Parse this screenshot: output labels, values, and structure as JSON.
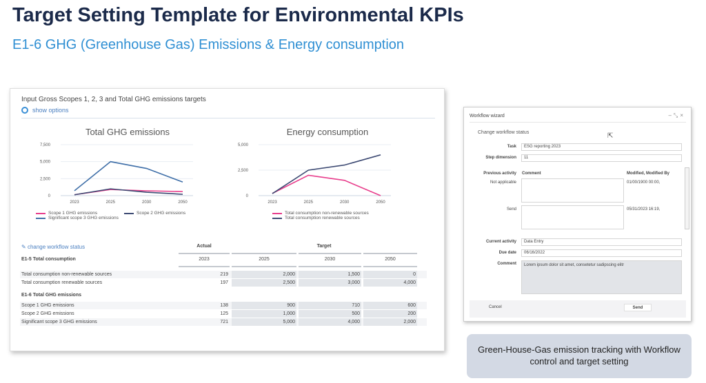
{
  "title": "Target Setting Template for Environmental KPIs",
  "subtitle": "E1-6 GHG (Greenhouse Gas) Emissions & Energy consumption",
  "panel": {
    "title": "Input Gross Scopes 1, 2, 3 and Total GHG emissions targets",
    "show_options": "show options",
    "change_status": "change workflow status"
  },
  "chart_data": [
    {
      "type": "line",
      "title": "Total GHG emissions",
      "categories": [
        "2023",
        "2025",
        "2030",
        "2050"
      ],
      "ylim": [
        0,
        7500
      ],
      "yticks": [
        "0",
        "2,500",
        "5,000",
        "7,500"
      ],
      "ytick_values": [
        0,
        2500,
        5000,
        7500
      ],
      "series": [
        {
          "name": "Scope 1 GHG emissions",
          "color": "#e83e8c",
          "values": [
            138,
            900,
            710,
            600
          ]
        },
        {
          "name": "Scope 2 GHG emissions",
          "color": "#3d4a73",
          "values": [
            125,
            1000,
            500,
            200
          ]
        },
        {
          "name": "Significant scope 3 GHG emissions",
          "color": "#3f6fa8",
          "values": [
            721,
            5000,
            4000,
            2000
          ]
        }
      ]
    },
    {
      "type": "line",
      "title": "Energy consumption",
      "categories": [
        "2023",
        "2025",
        "2030",
        "2050"
      ],
      "ylim": [
        0,
        5000
      ],
      "yticks": [
        "0",
        "2,500",
        "5,000"
      ],
      "ytick_values": [
        0,
        2500,
        5000
      ],
      "series": [
        {
          "name": "Total consumption non-renewable sources",
          "color": "#e83e8c",
          "values": [
            219,
            2000,
            1500,
            0
          ]
        },
        {
          "name": "Total consumption renewable sources",
          "color": "#3d4a73",
          "values": [
            197,
            2500,
            3000,
            4000
          ]
        }
      ]
    }
  ],
  "table": {
    "actual": "Actual",
    "target": "Target",
    "years": [
      "2023",
      "2025",
      "2030",
      "2050"
    ],
    "sections": [
      {
        "title": "E1-5 Total consumption",
        "rows": [
          {
            "label": "Total consumption non-renewable sources",
            "values": [
              "219",
              "2,000",
              "1,500",
              "0"
            ]
          },
          {
            "label": "Total consumption renewable sources",
            "values": [
              "197",
              "2,500",
              "3,000",
              "4,000"
            ]
          }
        ]
      },
      {
        "title": "E1-6 Total GHG emissions",
        "rows": [
          {
            "label": "Scope 1 GHG emissions",
            "values": [
              "138",
              "900",
              "710",
              "600"
            ]
          },
          {
            "label": "Scope 2 GHG emissions",
            "values": [
              "125",
              "1,000",
              "500",
              "200"
            ]
          },
          {
            "label": "Significant scope 3 GHG emissions",
            "values": [
              "721",
              "5,000",
              "4,000",
              "2,000"
            ]
          }
        ]
      }
    ]
  },
  "wizard": {
    "title": "Workflow wizard",
    "heading": "Change workflow status",
    "task_label": "Task",
    "task": "ESG reporting 2023",
    "step_label": "Step dimension",
    "step": "11",
    "prev_label": "Previous activity",
    "comment_col": "Comment",
    "modified_col": "Modified, Modified By",
    "history": [
      {
        "activity": "Not applicable",
        "modified": "01/00/1900 00:00,"
      },
      {
        "activity": "Send",
        "modified": "05/31/2023 16:19,"
      }
    ],
    "current_label": "Current activity",
    "current": "Data Entry",
    "due_label": "Due date",
    "due": "06/16/2022",
    "comment_label": "Comment",
    "comment": "Lorem ipsum dolor sit amet, consetetur sadipscing elitr",
    "cancel": "Cancel",
    "send": "Send"
  },
  "caption": "Green-House-Gas emission tracking with Workflow control and target setting"
}
